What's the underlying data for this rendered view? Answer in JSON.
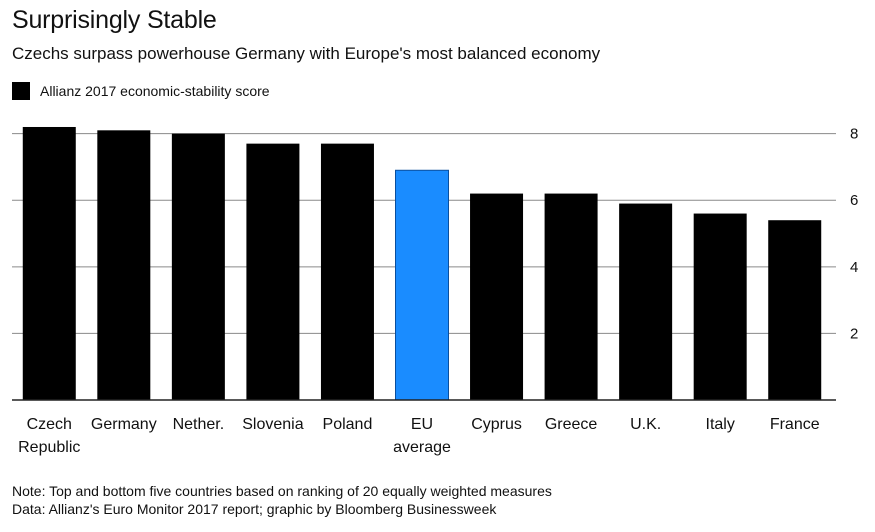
{
  "header": {
    "title": "Surprisingly Stable",
    "subtitle": "Czechs surpass powerhouse Germany with Europe's most balanced economy"
  },
  "legend": {
    "label": "Allianz 2017 economic-stability score",
    "color": "#000000"
  },
  "notes": {
    "note": "Note: Top and bottom five countries based on ranking of 20 equally weighted measures",
    "data": "Data: Allianz's Euro Monitor 2017 report; graphic by Bloomberg Businessweek"
  },
  "chart_data": {
    "type": "bar",
    "title": "Surprisingly Stable",
    "subtitle": "Czechs surpass powerhouse Germany with Europe's most balanced economy",
    "categories": [
      [
        "Czech",
        "Republic"
      ],
      [
        "Germany"
      ],
      [
        "Nether."
      ],
      [
        "Slovenia"
      ],
      [
        "Poland"
      ],
      [
        "EU",
        "average"
      ],
      [
        "Cyprus"
      ],
      [
        "Greece"
      ],
      [
        "U.K."
      ],
      [
        "Italy"
      ],
      [
        "France"
      ]
    ],
    "series": [
      {
        "name": "Allianz 2017 economic-stability score",
        "values": [
          8.2,
          8.1,
          8.0,
          7.7,
          7.7,
          6.9,
          6.2,
          6.2,
          5.9,
          5.6,
          5.4
        ]
      }
    ],
    "highlight_index": 5,
    "bar_color": "#000000",
    "highlight_color": "#1a8cff",
    "yticks": [
      2,
      4,
      6,
      8
    ],
    "ylim": [
      0,
      8.5
    ],
    "y_axis_side": "right",
    "grid": true,
    "legend_position": "top-left"
  }
}
